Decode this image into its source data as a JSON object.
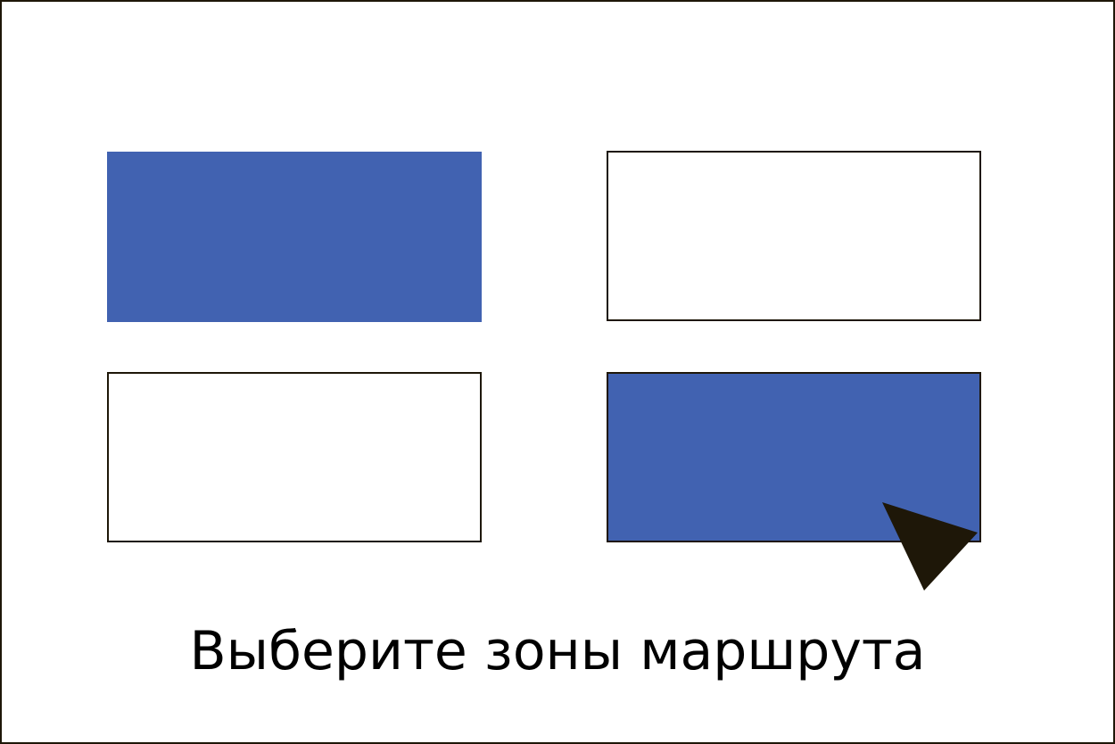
{
  "prompt": {
    "text": "Выберите зоны маршрута"
  },
  "zones": [
    {
      "id": "zone-1",
      "row": 1,
      "column": 1,
      "selected": true
    },
    {
      "id": "zone-2",
      "row": 1,
      "column": 2,
      "selected": false
    },
    {
      "id": "zone-3",
      "row": 2,
      "column": 1,
      "selected": false
    },
    {
      "id": "zone-4",
      "row": 2,
      "column": 2,
      "selected": true
    }
  ],
  "cursor": {
    "icon": "pointer-arrow-icon"
  },
  "colors": {
    "selected_fill": "#4162b1",
    "border": "#1e1708",
    "background": "#ffffff",
    "text": "#000000"
  }
}
